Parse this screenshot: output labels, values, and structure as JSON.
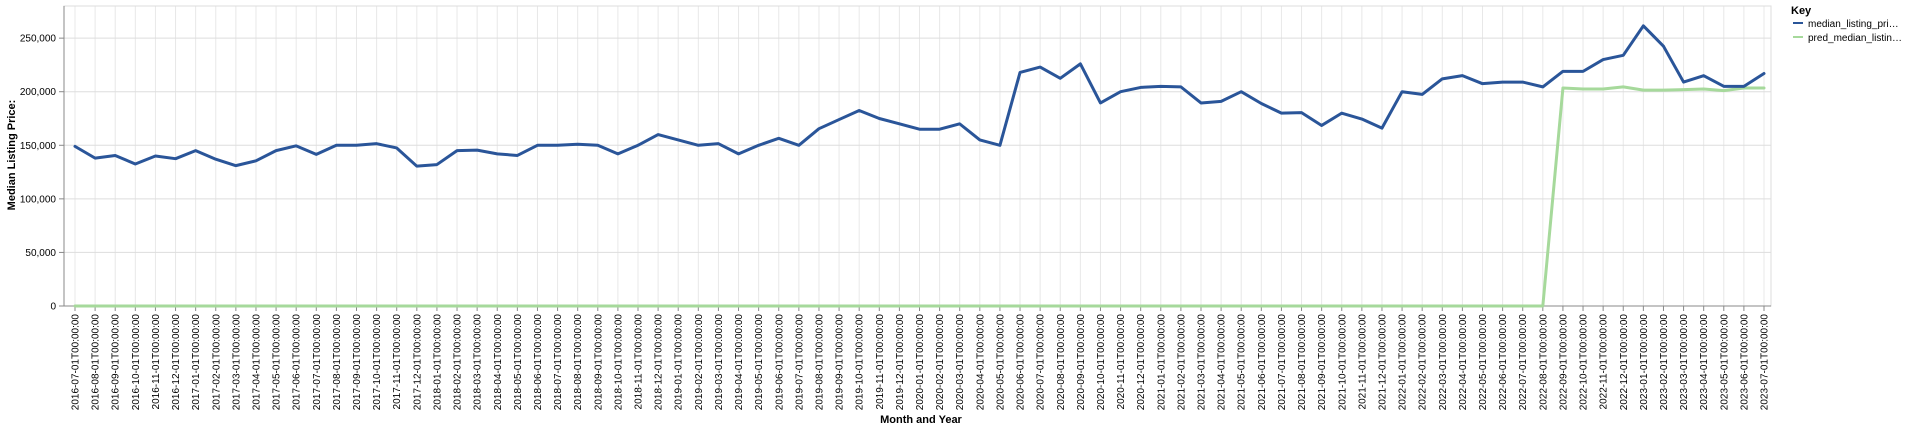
{
  "chart_data": {
    "type": "line",
    "xlabel": "Month and Year",
    "ylabel": "Median Listing Price:",
    "ylim": [
      0,
      280000
    ],
    "y_ticks": [
      0,
      50000,
      100000,
      150000,
      200000,
      250000
    ],
    "y_tick_labels": [
      "0",
      "50,000",
      "100,000",
      "150,000",
      "200,000",
      "250,000"
    ],
    "grid": true,
    "legend": {
      "title": "Key",
      "position": "top-right"
    },
    "x": [
      "2016-07-01T00:00:00",
      "2016-08-01T00:00:00",
      "2016-09-01T00:00:00",
      "2016-10-01T00:00:00",
      "2016-11-01T00:00:00",
      "2016-12-01T00:00:00",
      "2017-01-01T00:00:00",
      "2017-02-01T00:00:00",
      "2017-03-01T00:00:00",
      "2017-04-01T00:00:00",
      "2017-05-01T00:00:00",
      "2017-06-01T00:00:00",
      "2017-07-01T00:00:00",
      "2017-08-01T00:00:00",
      "2017-09-01T00:00:00",
      "2017-10-01T00:00:00",
      "2017-11-01T00:00:00",
      "2017-12-01T00:00:00",
      "2018-01-01T00:00:00",
      "2018-02-01T00:00:00",
      "2018-03-01T00:00:00",
      "2018-04-01T00:00:00",
      "2018-05-01T00:00:00",
      "2018-06-01T00:00:00",
      "2018-07-01T00:00:00",
      "2018-08-01T00:00:00",
      "2018-09-01T00:00:00",
      "2018-10-01T00:00:00",
      "2018-11-01T00:00:00",
      "2018-12-01T00:00:00",
      "2019-01-01T00:00:00",
      "2019-02-01T00:00:00",
      "2019-03-01T00:00:00",
      "2019-04-01T00:00:00",
      "2019-05-01T00:00:00",
      "2019-06-01T00:00:00",
      "2019-07-01T00:00:00",
      "2019-08-01T00:00:00",
      "2019-09-01T00:00:00",
      "2019-10-01T00:00:00",
      "2019-11-01T00:00:00",
      "2019-12-01T00:00:00",
      "2020-01-01T00:00:00",
      "2020-02-01T00:00:00",
      "2020-03-01T00:00:00",
      "2020-04-01T00:00:00",
      "2020-05-01T00:00:00",
      "2020-06-01T00:00:00",
      "2020-07-01T00:00:00",
      "2020-08-01T00:00:00",
      "2020-09-01T00:00:00",
      "2020-10-01T00:00:00",
      "2020-11-01T00:00:00",
      "2020-12-01T00:00:00",
      "2021-01-01T00:00:00",
      "2021-02-01T00:00:00",
      "2021-03-01T00:00:00",
      "2021-04-01T00:00:00",
      "2021-05-01T00:00:00",
      "2021-06-01T00:00:00",
      "2021-07-01T00:00:00",
      "2021-08-01T00:00:00",
      "2021-09-01T00:00:00",
      "2021-10-01T00:00:00",
      "2021-11-01T00:00:00",
      "2021-12-01T00:00:00",
      "2022-01-01T00:00:00",
      "2022-02-01T00:00:00",
      "2022-03-01T00:00:00",
      "2022-04-01T00:00:00",
      "2022-05-01T00:00:00",
      "2022-06-01T00:00:00",
      "2022-07-01T00:00:00",
      "2022-08-01T00:00:00",
      "2022-09-01T00:00:00",
      "2022-10-01T00:00:00",
      "2022-11-01T00:00:00",
      "2022-12-01T00:00:00",
      "2023-01-01T00:00:00",
      "2023-02-01T00:00:00",
      "2023-03-01T00:00:00",
      "2023-04-01T00:00:00",
      "2023-05-01T00:00:00",
      "2023-06-01T00:00:00",
      "2023-07-01T00:00:00"
    ],
    "series": [
      {
        "name": "median_listing_pri…",
        "color": "#2a5599",
        "values": [
          149000,
          138000,
          140500,
          132500,
          140000,
          137500,
          145000,
          137000,
          131000,
          135500,
          145000,
          149500,
          141500,
          150000,
          150000,
          151500,
          147500,
          130500,
          132000,
          145000,
          145500,
          142000,
          140500,
          150000,
          150000,
          151000,
          150000,
          142000,
          150000,
          160000,
          155000,
          150000,
          151500,
          142000,
          150000,
          156500,
          150000,
          165500,
          174000,
          182500,
          175000,
          170000,
          165000,
          165000,
          170000,
          155000,
          150000,
          218000,
          223000,
          212500,
          226000,
          189500,
          200000,
          204000,
          205000,
          204500,
          189500,
          191000,
          200000,
          189000,
          180000,
          180500,
          168500,
          180000,
          174500,
          166000,
          200000,
          197500,
          212000,
          215000,
          207500,
          209000,
          209000,
          204500,
          219000,
          219000,
          230000,
          234000,
          261500,
          242500,
          209000,
          215000,
          205000,
          205000,
          217000
        ]
      },
      {
        "name": "pred_median_listin…",
        "color": "#a6d99b",
        "values": [
          0,
          0,
          0,
          0,
          0,
          0,
          0,
          0,
          0,
          0,
          0,
          0,
          0,
          0,
          0,
          0,
          0,
          0,
          0,
          0,
          0,
          0,
          0,
          0,
          0,
          0,
          0,
          0,
          0,
          0,
          0,
          0,
          0,
          0,
          0,
          0,
          0,
          0,
          0,
          0,
          0,
          0,
          0,
          0,
          0,
          0,
          0,
          0,
          0,
          0,
          0,
          0,
          0,
          0,
          0,
          0,
          0,
          0,
          0,
          0,
          0,
          0,
          0,
          0,
          0,
          0,
          0,
          0,
          0,
          0,
          0,
          0,
          0,
          0,
          203500,
          202500,
          202500,
          204500,
          201500,
          201500,
          202000,
          202500,
          201000,
          203500,
          203500
        ]
      }
    ]
  }
}
